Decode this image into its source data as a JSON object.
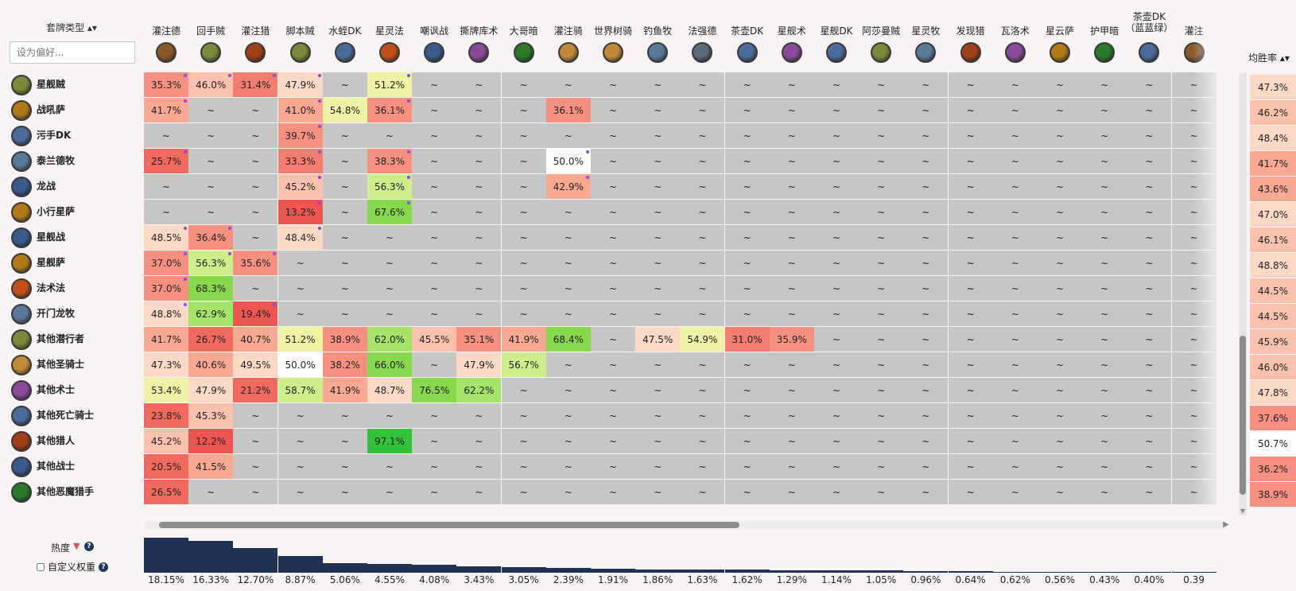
{
  "filter": {
    "sort_label": "套牌类型 ▴▾",
    "placeholder": "设为偏好..."
  },
  "columns": [
    {
      "label": "灌注德",
      "icon": "druid-class-icon",
      "color": "#8a5a2a"
    },
    {
      "label": "回手贼",
      "icon": "rogue-class-icon",
      "color": "#7a8a3a"
    },
    {
      "label": "灌注猎",
      "icon": "hunter-class-icon",
      "color": "#a0401a"
    },
    {
      "label": "脚本贼",
      "icon": "rogue-class-icon",
      "color": "#7a8a3a"
    },
    {
      "label": "水蛭DK",
      "icon": "death-knight-class-icon",
      "color": "#4a6a9a"
    },
    {
      "label": "星灵法",
      "icon": "mage-class-icon",
      "color": "#c0501a"
    },
    {
      "label": "嘲讽战",
      "icon": "warrior-class-icon",
      "color": "#3a5a8a"
    },
    {
      "label": "撕牌库术",
      "icon": "warlock-class-icon",
      "color": "#8a4a9a"
    },
    {
      "label": "大哥暗",
      "icon": "demon-hunter-class-icon",
      "color": "#2a7a2a"
    },
    {
      "label": "灌注骑",
      "icon": "paladin-class-icon",
      "color": "#c08a3a"
    },
    {
      "label": "世界树骑",
      "icon": "paladin-class-icon",
      "color": "#c08a3a"
    },
    {
      "label": "钓鱼牧",
      "icon": "priest-class-icon",
      "color": "#5a7a9a"
    },
    {
      "label": "法强德",
      "icon": "druid-class-icon",
      "color": "#5a6a7a"
    },
    {
      "label": "茶壶DK",
      "icon": "death-knight-class-icon",
      "color": "#4a6a9a"
    },
    {
      "label": "星舰术",
      "icon": "warlock-class-icon",
      "color": "#8a4a9a"
    },
    {
      "label": "星舰DK",
      "icon": "death-knight-class-icon",
      "color": "#4a6a9a"
    },
    {
      "label": "阿莎曼贼",
      "icon": "rogue-class-icon",
      "color": "#7a8a3a"
    },
    {
      "label": "星灵牧",
      "icon": "priest-class-icon",
      "color": "#5a7a9a"
    },
    {
      "label": "发现猎",
      "icon": "hunter-class-icon",
      "color": "#a0401a"
    },
    {
      "label": "瓦洛术",
      "icon": "warlock-class-icon",
      "color": "#8a4a9a"
    },
    {
      "label": "星云萨",
      "icon": "shaman-class-icon",
      "color": "#b07a1a"
    },
    {
      "label": "护甲暗",
      "icon": "demon-hunter-class-icon",
      "color": "#2a7a2a"
    },
    {
      "label": "茶壶DK（蓝蓝绿）",
      "icon": "death-knight-class-icon",
      "color": "#4a6a9a"
    },
    {
      "label": "灌注",
      "icon": "druid-class-icon",
      "color": "#8a5a2a"
    }
  ],
  "rows": [
    {
      "label": "星舰贼",
      "icon": "rogue-class-icon",
      "color": "#7a8a3a",
      "winrate": "47.3%",
      "cells": [
        "35.3%",
        "46.0%",
        "31.4%",
        "47.9%",
        "~",
        "51.2%",
        "~",
        "~",
        "~",
        "~",
        "~",
        "~",
        "~",
        "~",
        "~",
        "~",
        "~",
        "~",
        "~",
        "~",
        "~",
        "~",
        "~",
        "~"
      ]
    },
    {
      "label": "战吼萨",
      "icon": "shaman-class-icon",
      "color": "#b07a1a",
      "winrate": "46.2%",
      "cells": [
        "41.7%",
        "~",
        "~",
        "41.0%",
        "54.8%",
        "36.1%",
        "~",
        "~",
        "~",
        "36.1%",
        "~",
        "~",
        "~",
        "~",
        "~",
        "~",
        "~",
        "~",
        "~",
        "~",
        "~",
        "~",
        "~",
        "~"
      ]
    },
    {
      "label": "污手DK",
      "icon": "death-knight-class-icon",
      "color": "#4a6a9a",
      "winrate": "48.4%",
      "cells": [
        "~",
        "~",
        "~",
        "39.7%",
        "~",
        "~",
        "~",
        "~",
        "~",
        "~",
        "~",
        "~",
        "~",
        "~",
        "~",
        "~",
        "~",
        "~",
        "~",
        "~",
        "~",
        "~",
        "~",
        "~"
      ]
    },
    {
      "label": "泰兰德牧",
      "icon": "priest-class-icon",
      "color": "#5a7a9a",
      "winrate": "41.7%",
      "cells": [
        "25.7%",
        "~",
        "~",
        "33.3%",
        "~",
        "38.3%",
        "~",
        "~",
        "~",
        "50.0%",
        "~",
        "~",
        "~",
        "~",
        "~",
        "~",
        "~",
        "~",
        "~",
        "~",
        "~",
        "~",
        "~",
        "~"
      ]
    },
    {
      "label": "龙战",
      "icon": "warrior-class-icon",
      "color": "#3a5a8a",
      "winrate": "43.6%",
      "cells": [
        "~",
        "~",
        "~",
        "45.2%",
        "~",
        "56.3%",
        "~",
        "~",
        "~",
        "42.9%",
        "~",
        "~",
        "~",
        "~",
        "~",
        "~",
        "~",
        "~",
        "~",
        "~",
        "~",
        "~",
        "~",
        "~"
      ]
    },
    {
      "label": "小行星萨",
      "icon": "shaman-class-icon",
      "color": "#b07a1a",
      "winrate": "47.0%",
      "cells": [
        "~",
        "~",
        "~",
        "13.2%",
        "~",
        "67.6%",
        "~",
        "~",
        "~",
        "~",
        "~",
        "~",
        "~",
        "~",
        "~",
        "~",
        "~",
        "~",
        "~",
        "~",
        "~",
        "~",
        "~",
        "~"
      ]
    },
    {
      "label": "星舰战",
      "icon": "warrior-class-icon",
      "color": "#3a5a8a",
      "winrate": "46.1%",
      "cells": [
        "48.5%",
        "36.4%",
        "~",
        "48.4%",
        "~",
        "~",
        "~",
        "~",
        "~",
        "~",
        "~",
        "~",
        "~",
        "~",
        "~",
        "~",
        "~",
        "~",
        "~",
        "~",
        "~",
        "~",
        "~",
        "~"
      ]
    },
    {
      "label": "星舰萨",
      "icon": "shaman-class-icon",
      "color": "#b07a1a",
      "winrate": "48.8%",
      "cells": [
        "37.0%",
        "56.3%",
        "35.6%",
        "~",
        "~",
        "~",
        "~",
        "~",
        "~",
        "~",
        "~",
        "~",
        "~",
        "~",
        "~",
        "~",
        "~",
        "~",
        "~",
        "~",
        "~",
        "~",
        "~",
        "~"
      ]
    },
    {
      "label": "法术法",
      "icon": "mage-class-icon",
      "color": "#c0501a",
      "winrate": "44.5%",
      "cells": [
        "37.0%",
        "68.3%",
        "~",
        "~",
        "~",
        "~",
        "~",
        "~",
        "~",
        "~",
        "~",
        "~",
        "~",
        "~",
        "~",
        "~",
        "~",
        "~",
        "~",
        "~",
        "~",
        "~",
        "~",
        "~"
      ]
    },
    {
      "label": "开门龙牧",
      "icon": "priest-class-icon",
      "color": "#5a7a9a",
      "winrate": "44.5%",
      "cells": [
        "48.8%",
        "62.9%",
        "19.4%",
        "~",
        "~",
        "~",
        "~",
        "~",
        "~",
        "~",
        "~",
        "~",
        "~",
        "~",
        "~",
        "~",
        "~",
        "~",
        "~",
        "~",
        "~",
        "~",
        "~",
        "~"
      ]
    },
    {
      "label": "其他潜行者",
      "icon": "rogue-class-icon",
      "color": "#7a8a3a",
      "winrate": "45.9%",
      "cells": [
        "41.7%",
        "26.7%",
        "40.7%",
        "51.2%",
        "38.9%",
        "62.0%",
        "45.5%",
        "35.1%",
        "41.9%",
        "68.4%",
        "~",
        "47.5%",
        "54.9%",
        "31.0%",
        "35.9%",
        "~",
        "~",
        "~",
        "~",
        "~",
        "~",
        "~",
        "~",
        "~"
      ]
    },
    {
      "label": "其他圣骑士",
      "icon": "paladin-class-icon",
      "color": "#c08a3a",
      "winrate": "46.0%",
      "cells": [
        "47.3%",
        "40.6%",
        "49.5%",
        "50.0%",
        "38.2%",
        "66.0%",
        "~",
        "47.9%",
        "56.7%",
        "~",
        "~",
        "~",
        "~",
        "~",
        "~",
        "~",
        "~",
        "~",
        "~",
        "~",
        "~",
        "~",
        "~",
        "~"
      ]
    },
    {
      "label": "其他术士",
      "icon": "warlock-class-icon",
      "color": "#8a4a9a",
      "winrate": "47.8%",
      "cells": [
        "53.4%",
        "47.9%",
        "21.2%",
        "58.7%",
        "41.9%",
        "48.7%",
        "76.5%",
        "62.2%",
        "~",
        "~",
        "~",
        "~",
        "~",
        "~",
        "~",
        "~",
        "~",
        "~",
        "~",
        "~",
        "~",
        "~",
        "~",
        "~"
      ]
    },
    {
      "label": "其他死亡骑士",
      "icon": "death-knight-class-icon",
      "color": "#4a6a9a",
      "winrate": "37.6%",
      "cells": [
        "23.8%",
        "45.3%",
        "~",
        "~",
        "~",
        "~",
        "~",
        "~",
        "~",
        "~",
        "~",
        "~",
        "~",
        "~",
        "~",
        "~",
        "~",
        "~",
        "~",
        "~",
        "~",
        "~",
        "~",
        "~"
      ]
    },
    {
      "label": "其他猎人",
      "icon": "hunter-class-icon",
      "color": "#a0401a",
      "winrate": "50.7%",
      "cells": [
        "45.2%",
        "12.2%",
        "~",
        "~",
        "~",
        "97.1%",
        "~",
        "~",
        "~",
        "~",
        "~",
        "~",
        "~",
        "~",
        "~",
        "~",
        "~",
        "~",
        "~",
        "~",
        "~",
        "~",
        "~",
        "~"
      ]
    },
    {
      "label": "其他战士",
      "icon": "warrior-class-icon",
      "color": "#3a5a8a",
      "winrate": "36.2%",
      "cells": [
        "20.5%",
        "41.5%",
        "~",
        "~",
        "~",
        "~",
        "~",
        "~",
        "~",
        "~",
        "~",
        "~",
        "~",
        "~",
        "~",
        "~",
        "~",
        "~",
        "~",
        "~",
        "~",
        "~",
        "~",
        "~"
      ]
    },
    {
      "label": "其他恶魔猎手",
      "icon": "demon-hunter-class-icon",
      "color": "#2a7a2a",
      "winrate": "38.9%",
      "cells": [
        "26.5%",
        "~",
        "~",
        "~",
        "~",
        "~",
        "~",
        "~",
        "~",
        "~",
        "~",
        "~",
        "~",
        "~",
        "~",
        "~",
        "~",
        "~",
        "~",
        "~",
        "~",
        "~",
        "~",
        "~"
      ]
    }
  ],
  "dots": [
    [
      0,
      0
    ],
    [
      0,
      1
    ],
    [
      0,
      2
    ],
    [
      0,
      3
    ],
    [
      0,
      5
    ],
    [
      1,
      0
    ],
    [
      1,
      3
    ],
    [
      1,
      5
    ],
    [
      2,
      3
    ],
    [
      3,
      0
    ],
    [
      3,
      3
    ],
    [
      3,
      5
    ],
    [
      3,
      9
    ],
    [
      4,
      3
    ],
    [
      4,
      5
    ],
    [
      4,
      9
    ],
    [
      5,
      3
    ],
    [
      5,
      5
    ],
    [
      6,
      0
    ],
    [
      6,
      1
    ],
    [
      6,
      3
    ],
    [
      7,
      0
    ],
    [
      7,
      1
    ],
    [
      7,
      2
    ],
    [
      8,
      0
    ],
    [
      9,
      0
    ],
    [
      9,
      2
    ]
  ],
  "winrate_label": "均胜率 ▴▾",
  "popularity": {
    "label": "热度",
    "sort_icon": "sort-desc-triangle-icon",
    "values": [
      18.15,
      16.33,
      12.7,
      8.87,
      5.06,
      4.55,
      4.08,
      3.43,
      3.05,
      2.39,
      1.91,
      1.86,
      1.63,
      1.62,
      1.29,
      1.14,
      1.05,
      0.96,
      0.64,
      0.62,
      0.56,
      0.43,
      0.4,
      0.39
    ],
    "labels": [
      "18.15%",
      "16.33%",
      "12.70%",
      "8.87%",
      "5.06%",
      "4.55%",
      "4.08%",
      "3.43%",
      "3.05%",
      "2.39%",
      "1.91%",
      "1.86%",
      "1.63%",
      "1.62%",
      "1.29%",
      "1.14%",
      "1.05%",
      "0.96%",
      "0.64%",
      "0.62%",
      "0.56%",
      "0.43%",
      "0.40%",
      "0.39"
    ]
  },
  "custom_weight_label": "自定义权重",
  "help_glyph": "?"
}
